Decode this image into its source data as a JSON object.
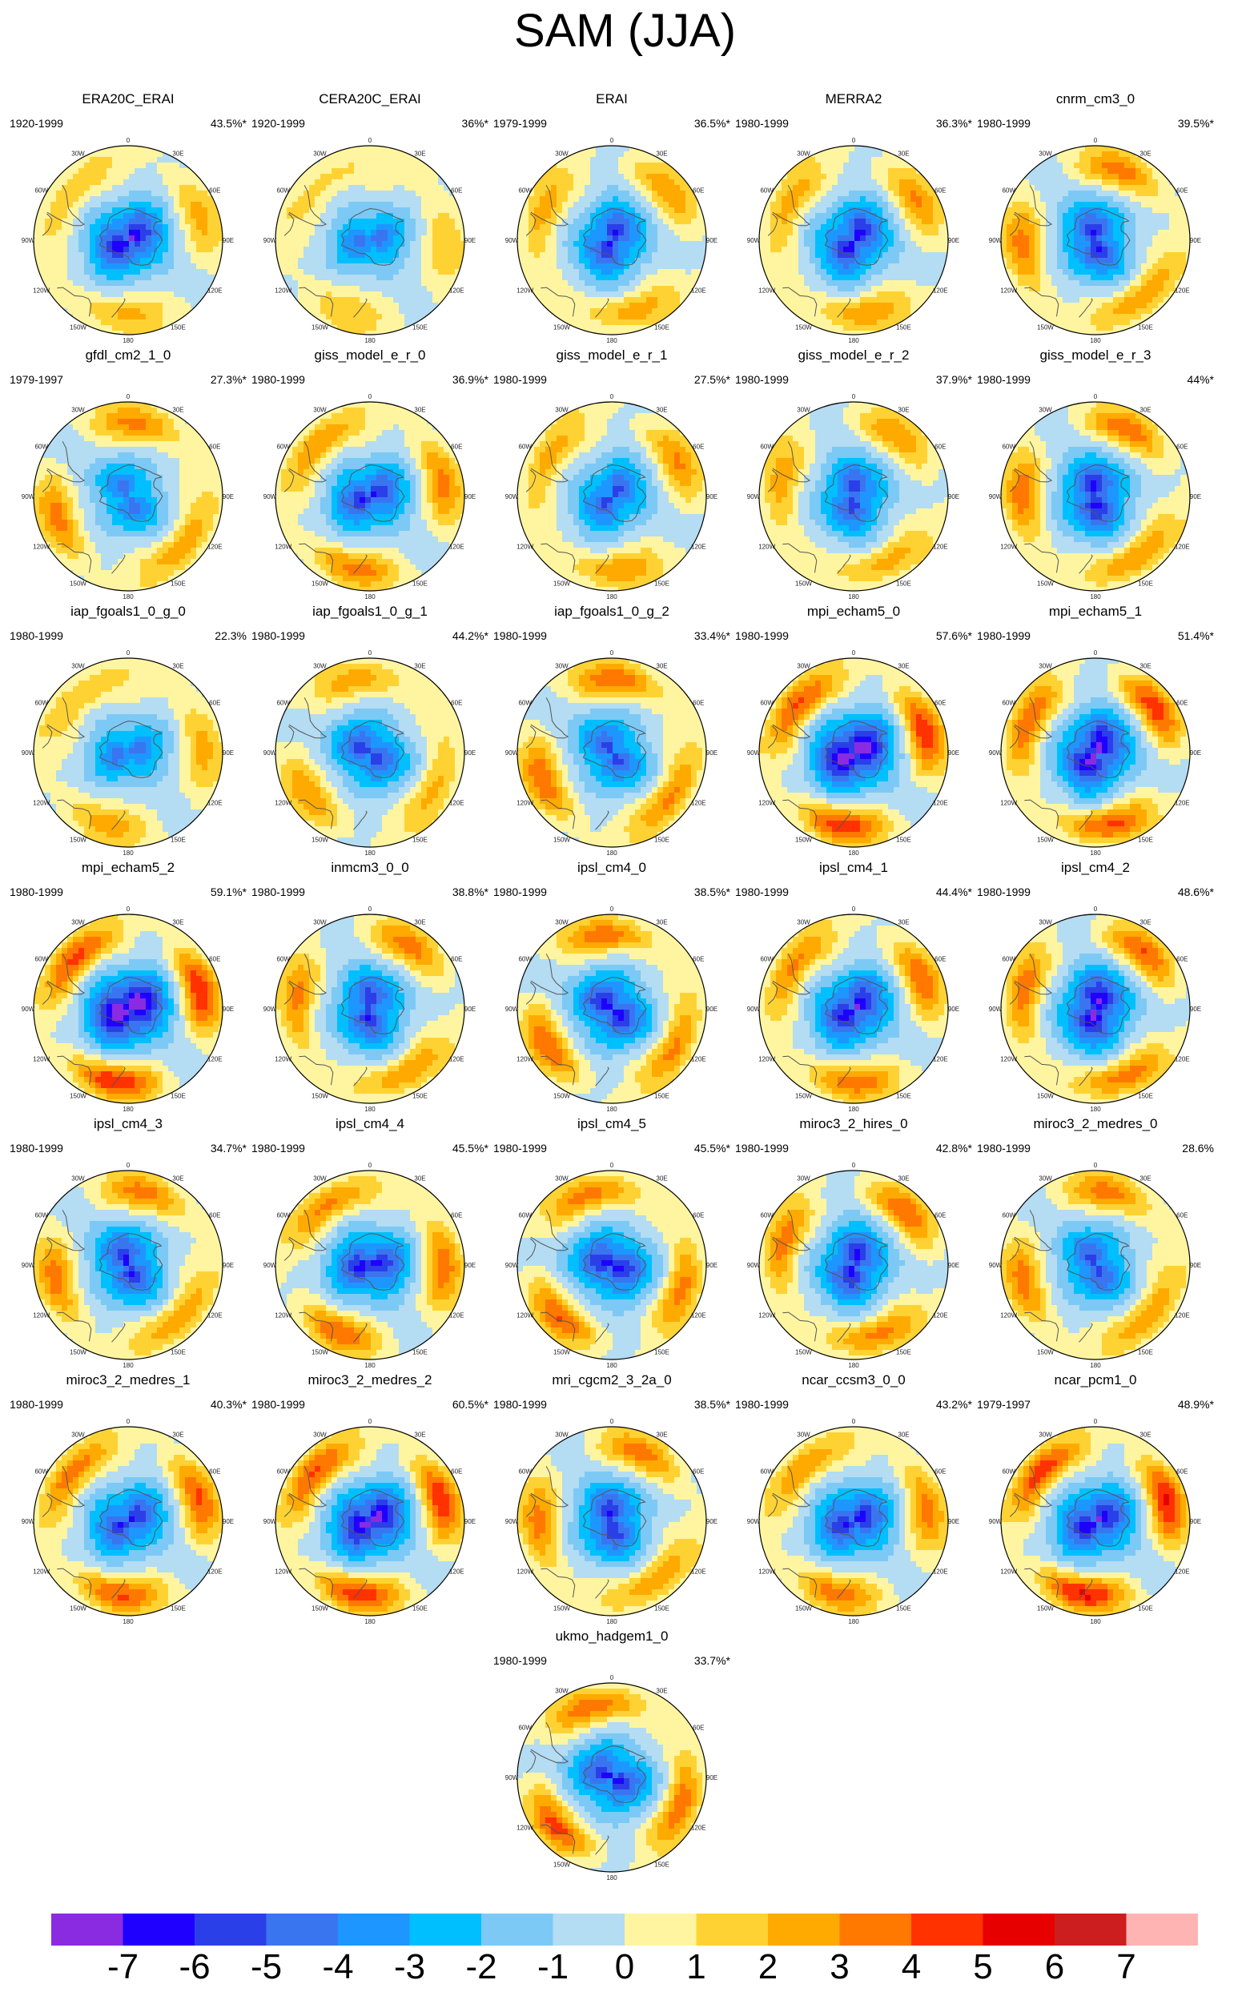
{
  "title": "SAM (JJA)",
  "lon_labels": [
    "0",
    "30E",
    "60E",
    "90E",
    "120E",
    "150E",
    "180",
    "150W",
    "120W",
    "90W",
    "60W",
    "30W"
  ],
  "colorbar": {
    "labels": [
      "-7",
      "-6",
      "-5",
      "-4",
      "-3",
      "-2",
      "-1",
      "0",
      "1",
      "2",
      "3",
      "4",
      "5",
      "6",
      "7"
    ],
    "colors": [
      "#8a2be2",
      "#1f00ff",
      "#2b3fe8",
      "#3a75f0",
      "#1e96ff",
      "#00bfff",
      "#7cc9f5",
      "#b4dcf2",
      "#fff5a0",
      "#ffd234",
      "#ffaa00",
      "#ff7800",
      "#ff3200",
      "#e60000",
      "#cc1e1e",
      "#ffb4b4"
    ]
  },
  "panels": [
    {
      "name": "ERA20C_ERAI",
      "years": "1920-1999",
      "var": "43.5%*",
      "amp": 1.0,
      "phase": 1.2,
      "ring": 0.55
    },
    {
      "name": "CERA20C_ERAI",
      "years": "1920-1999",
      "var": "36%*",
      "amp": 0.7,
      "phase": 0.4,
      "ring": 0.4
    },
    {
      "name": "ERAI",
      "years": "1979-1999",
      "var": "36.5%*",
      "amp": 0.9,
      "phase": 2.2,
      "ring": 0.7
    },
    {
      "name": "MERRA2",
      "years": "1980-1999",
      "var": "36.3%*",
      "amp": 0.95,
      "phase": 1.8,
      "ring": 0.75
    },
    {
      "name": "cnrm_cm3_0",
      "years": "1980-1999",
      "var": "39.5%*",
      "amp": 0.9,
      "phase": 3.6,
      "ring": 0.9
    },
    {
      "name": "gfdl_cm2_1_0",
      "years": "1979-1997",
      "var": "27.3%*",
      "amp": 0.7,
      "phase": 4.2,
      "ring": 0.85
    },
    {
      "name": "giss_model_e_r_0",
      "years": "1980-1999",
      "var": "36.9%*",
      "amp": 0.9,
      "phase": 0.8,
      "ring": 0.9
    },
    {
      "name": "giss_model_e_r_1",
      "years": "1980-1999",
      "var": "27.5%*",
      "amp": 0.8,
      "phase": 1.6,
      "ring": 0.75
    },
    {
      "name": "giss_model_e_r_2",
      "years": "1980-1999",
      "var": "37.9%*",
      "amp": 0.85,
      "phase": 2.8,
      "ring": 0.7
    },
    {
      "name": "giss_model_e_r_3",
      "years": "1980-1999",
      "var": "44%*",
      "amp": 0.95,
      "phase": 3.3,
      "ring": 0.95
    },
    {
      "name": "iap_fgoals1_0_g_0",
      "years": "1980-1999",
      "var": "22.3%",
      "amp": 0.7,
      "phase": 0.5,
      "ring": 0.6
    },
    {
      "name": "iap_fgoals1_0_g_1",
      "years": "1980-1999",
      "var": "44.2%*",
      "amp": 0.85,
      "phase": 5.0,
      "ring": 0.7
    },
    {
      "name": "iap_fgoals1_0_g_2",
      "years": "1980-1999",
      "var": "33.4%*",
      "amp": 0.8,
      "phase": 4.4,
      "ring": 1.0
    },
    {
      "name": "mpi_echam5_0",
      "years": "1980-1999",
      "var": "57.6%*",
      "amp": 1.2,
      "phase": 1.0,
      "ring": 1.3
    },
    {
      "name": "mpi_echam5_1",
      "years": "1980-1999",
      "var": "51.4%*",
      "amp": 1.1,
      "phase": 2.0,
      "ring": 1.2
    },
    {
      "name": "mpi_echam5_2",
      "years": "1980-1999",
      "var": "59.1%*",
      "amp": 1.25,
      "phase": 0.9,
      "ring": 1.35
    },
    {
      "name": "inmcm3_0_0",
      "years": "1980-1999",
      "var": "38.8%*",
      "amp": 0.9,
      "phase": 3.0,
      "ring": 0.9
    },
    {
      "name": "ipsl_cm4_0",
      "years": "1980-1999",
      "var": "38.5%*",
      "amp": 0.95,
      "phase": 4.8,
      "ring": 1.0
    },
    {
      "name": "ipsl_cm4_1",
      "years": "1980-1999",
      "var": "44.4%*",
      "amp": 1.0,
      "phase": 1.4,
      "ring": 1.0
    },
    {
      "name": "ipsl_cm4_2",
      "years": "1980-1999",
      "var": "48.6%*",
      "amp": 1.05,
      "phase": 2.6,
      "ring": 1.05
    },
    {
      "name": "ipsl_cm4_3",
      "years": "1980-1999",
      "var": "34.7%*",
      "amp": 0.9,
      "phase": 3.9,
      "ring": 0.9
    },
    {
      "name": "ipsl_cm4_4",
      "years": "1980-1999",
      "var": "45.5%*",
      "amp": 0.95,
      "phase": 0.2,
      "ring": 1.0
    },
    {
      "name": "ipsl_cm4_5",
      "years": "1980-1999",
      "var": "45.5%*",
      "amp": 0.95,
      "phase": 5.5,
      "ring": 1.0
    },
    {
      "name": "miroc3_2_hires_0",
      "years": "1980-1999",
      "var": "42.8%*",
      "amp": 0.95,
      "phase": 2.4,
      "ring": 1.0
    },
    {
      "name": "miroc3_2_medres_0",
      "years": "1980-1999",
      "var": "28.6%",
      "amp": 0.8,
      "phase": 4.0,
      "ring": 0.9
    },
    {
      "name": "miroc3_2_medres_1",
      "years": "1980-1999",
      "var": "40.3%*",
      "amp": 0.9,
      "phase": 1.1,
      "ring": 1.1
    },
    {
      "name": "miroc3_2_medres_2",
      "years": "1980-1999",
      "var": "60.5%*",
      "amp": 1.1,
      "phase": 1.0,
      "ring": 1.3
    },
    {
      "name": "mri_cgcm2_3_2a_0",
      "years": "1980-1999",
      "var": "38.5%*",
      "amp": 0.9,
      "phase": 3.4,
      "ring": 0.9
    },
    {
      "name": "ncar_ccsm3_0_0",
      "years": "1980-1999",
      "var": "43.2%*",
      "amp": 0.95,
      "phase": 0.7,
      "ring": 0.9
    },
    {
      "name": "ncar_pcm1_0",
      "years": "1979-1997",
      "var": "48.9%*",
      "amp": 1.0,
      "phase": 0.95,
      "ring": 1.4
    },
    {
      "name": "ukmo_hadgem1_0",
      "years": "1980-1999",
      "var": "33.7%*",
      "amp": 0.9,
      "phase": 5.3,
      "ring": 1.1
    }
  ]
}
